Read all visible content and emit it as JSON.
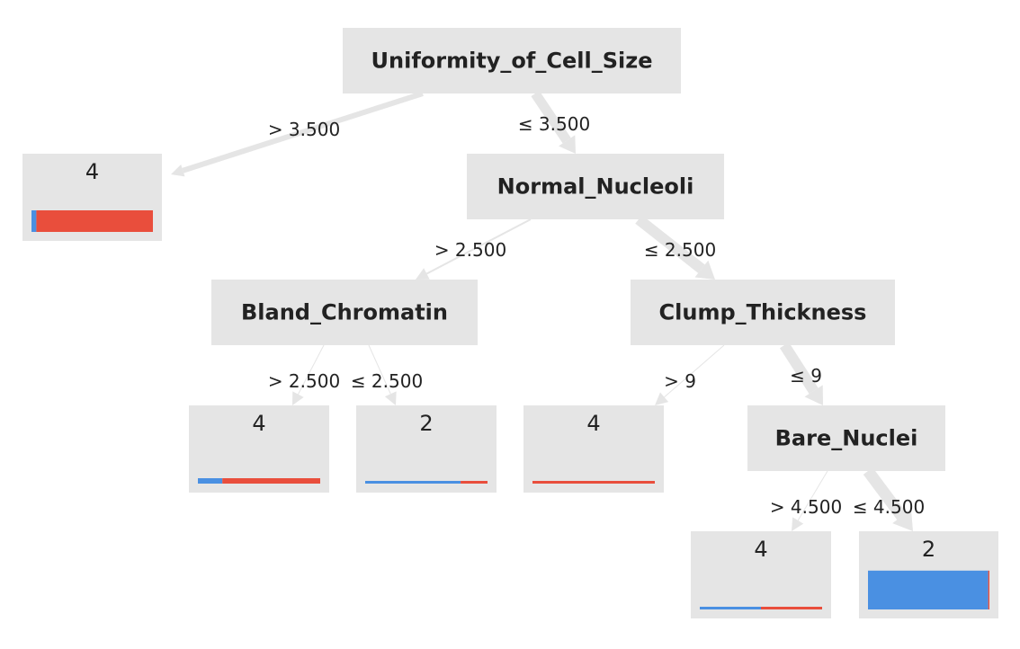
{
  "colors": {
    "node_fill": "#e5e5e5",
    "edge": "#e5e5e5",
    "class_2": "#4a90e2",
    "class_4": "#e94e3c",
    "text": "#222222"
  },
  "nodes": [
    {
      "id": "n0",
      "title": "Uniformity_of_Cell_Size",
      "type": "split"
    },
    {
      "id": "n1",
      "title": "4",
      "type": "leaf",
      "dist": {
        "class_2": 0.04,
        "class_4": 0.96
      },
      "count_scale": 1.0
    },
    {
      "id": "n2",
      "title": "Normal_Nucleoli",
      "type": "split"
    },
    {
      "id": "n3",
      "title": "Bland_Chromatin",
      "type": "split"
    },
    {
      "id": "n4",
      "title": "Clump_Thickness",
      "type": "split"
    },
    {
      "id": "n5",
      "title": "4",
      "type": "leaf",
      "dist": {
        "class_2": 0.2,
        "class_4": 0.8
      },
      "count_scale": 0.25
    },
    {
      "id": "n6",
      "title": "2",
      "type": "leaf",
      "dist": {
        "class_2": 0.78,
        "class_4": 0.22
      },
      "count_scale": 0.12
    },
    {
      "id": "n7",
      "title": "4",
      "type": "leaf",
      "dist": {
        "class_2": 0.0,
        "class_4": 1.0
      },
      "count_scale": 0.08
    },
    {
      "id": "n8",
      "title": "Bare_Nuclei",
      "type": "split"
    },
    {
      "id": "n9",
      "title": "4",
      "type": "leaf",
      "dist": {
        "class_2": 0.5,
        "class_4": 0.5
      },
      "count_scale": 0.1
    },
    {
      "id": "n10",
      "title": "2",
      "type": "leaf",
      "dist": {
        "class_2": 0.99,
        "class_4": 0.01
      },
      "count_scale": 1.8
    }
  ],
  "edges": [
    {
      "from": "n0",
      "to": "n1",
      "label": "> 3.500"
    },
    {
      "from": "n0",
      "to": "n2",
      "label": "≤ 3.500"
    },
    {
      "from": "n2",
      "to": "n3",
      "label": "> 2.500"
    },
    {
      "from": "n2",
      "to": "n4",
      "label": "≤ 2.500"
    },
    {
      "from": "n3",
      "to": "n5",
      "label": "> 2.500"
    },
    {
      "from": "n3",
      "to": "n6",
      "label": "≤ 2.500"
    },
    {
      "from": "n4",
      "to": "n7",
      "label": "> 9"
    },
    {
      "from": "n4",
      "to": "n8",
      "label": "≤ 9"
    },
    {
      "from": "n8",
      "to": "n9",
      "label": "> 4.500"
    },
    {
      "from": "n8",
      "to": "n10",
      "label": "≤ 4.500"
    }
  ]
}
